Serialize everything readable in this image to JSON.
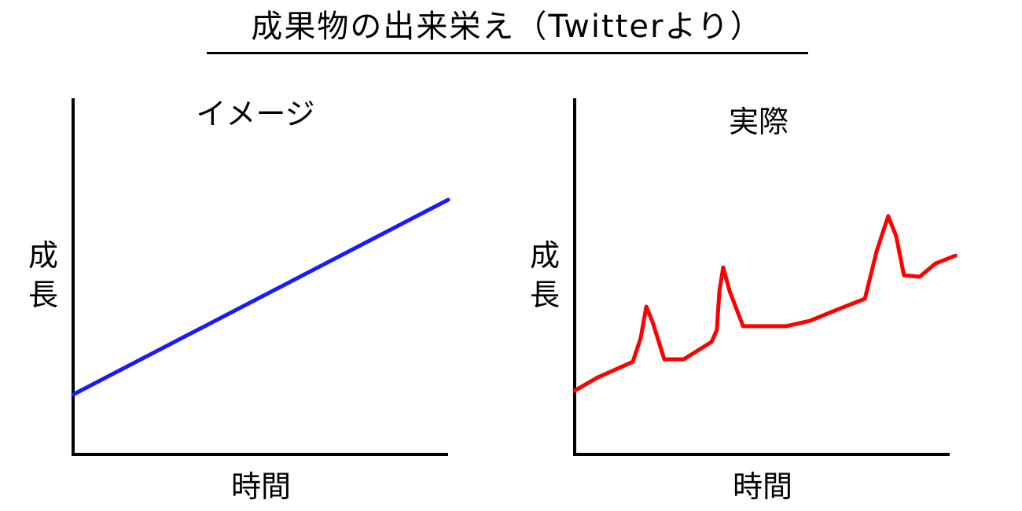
{
  "title": "成果物の出来栄え（Twitterより）",
  "chart_data": [
    {
      "type": "line",
      "title": "イメージ",
      "xlabel": "時間",
      "ylabel": "成長",
      "color": "#1a1aff",
      "xlim": [
        0,
        100
      ],
      "ylim": [
        0,
        100
      ],
      "grid": false,
      "x": [
        0,
        100
      ],
      "y": [
        16.8,
        71.5
      ]
    },
    {
      "type": "line",
      "title": "実際",
      "xlabel": "時間",
      "ylabel": "成長",
      "color": "#ff0000",
      "xlim": [
        0,
        100
      ],
      "ylim": [
        0,
        100
      ],
      "grid": false,
      "x": [
        0,
        6.1,
        15.5,
        17.6,
        19.1,
        20.8,
        23.9,
        29.1,
        36.5,
        37.9,
        38.6,
        39.6,
        41.3,
        44.9,
        56.4,
        62.7,
        71.1,
        77.4,
        80.5,
        83.6,
        85.7,
        87.8,
        92.0,
        96.2,
        101.5
      ],
      "y": [
        17.9,
        21.6,
        26.0,
        32.7,
        41.5,
        37.1,
        26.7,
        26.7,
        31.6,
        34.9,
        45.9,
        52.5,
        45.9,
        36.0,
        36.0,
        37.5,
        41.1,
        43.7,
        57.0,
        66.9,
        61.4,
        50.3,
        49.9,
        53.6,
        55.8
      ]
    }
  ]
}
